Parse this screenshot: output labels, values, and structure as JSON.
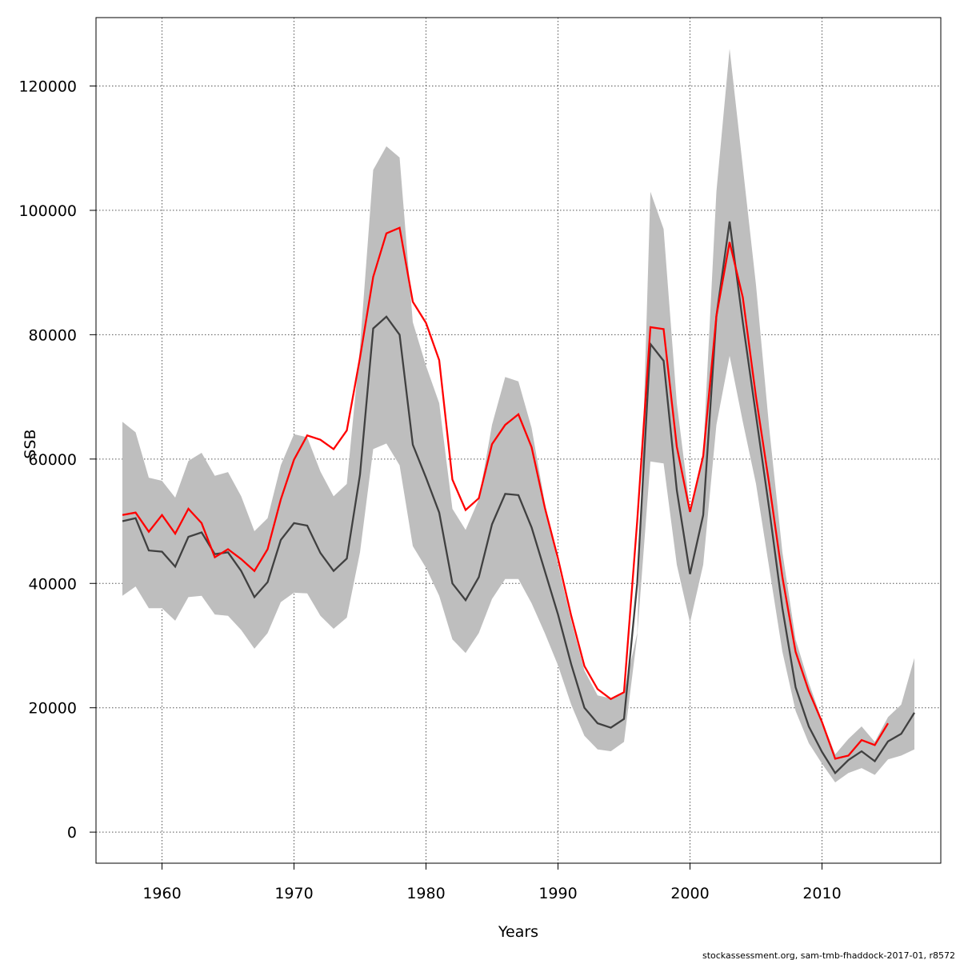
{
  "chart_data": {
    "type": "line",
    "title": "",
    "xlabel": "Years",
    "ylabel": "SSB",
    "xlim": [
      1955,
      2019
    ],
    "ylim": [
      -5000,
      131000
    ],
    "xticks": [
      1960,
      1970,
      1980,
      1990,
      2000,
      2010
    ],
    "yticks": [
      0,
      20000,
      40000,
      60000,
      80000,
      100000,
      120000
    ],
    "xtick_labels": [
      "1960",
      "1970",
      "1980",
      "1990",
      "2000",
      "2010"
    ],
    "ytick_labels": [
      "0",
      "20000",
      "40000",
      "60000",
      "80000",
      "100000",
      "120000"
    ],
    "grid": true,
    "colors": {
      "band": "#bebebe",
      "estimate": "#404040",
      "comparison": "#ff0000"
    },
    "x": [
      1957,
      1958,
      1959,
      1960,
      1961,
      1962,
      1963,
      1964,
      1965,
      1966,
      1967,
      1968,
      1969,
      1970,
      1971,
      1972,
      1973,
      1974,
      1975,
      1976,
      1977,
      1978,
      1979,
      1980,
      1981,
      1982,
      1983,
      1984,
      1985,
      1986,
      1987,
      1988,
      1989,
      1990,
      1991,
      1992,
      1993,
      1994,
      1995,
      1996,
      1997,
      1998,
      1999,
      2000,
      2001,
      2002,
      2003,
      2004,
      2005,
      2006,
      2007,
      2008,
      2009,
      2010,
      2011,
      2012,
      2013,
      2014,
      2015,
      2016,
      2017
    ],
    "band_upper": [
      66000,
      64300,
      57000,
      56500,
      53800,
      59700,
      61000,
      57300,
      57900,
      54000,
      48400,
      50500,
      59000,
      64000,
      63500,
      58000,
      54000,
      56000,
      78000,
      106500,
      110300,
      108500,
      82000,
      75000,
      69000,
      52000,
      48600,
      53500,
      65500,
      73200,
      72500,
      65000,
      53000,
      43000,
      34000,
      26000,
      22000,
      21500,
      22500,
      32000,
      103000,
      97000,
      69000,
      52000,
      61000,
      103000,
      126000,
      107000,
      88000,
      65000,
      45000,
      31000,
      24000,
      18000,
      12500,
      15000,
      17000,
      14500,
      18500,
      20500,
      28000
    ],
    "band_lower": [
      38000,
      39500,
      36000,
      36000,
      34000,
      37800,
      38000,
      35000,
      34800,
      32500,
      29500,
      32000,
      37000,
      38500,
      38400,
      34800,
      32700,
      34500,
      45000,
      61600,
      62500,
      59000,
      46000,
      42500,
      38000,
      31000,
      28800,
      32000,
      37500,
      40700,
      40700,
      36800,
      32000,
      26800,
      20500,
      15500,
      13300,
      13000,
      14500,
      31500,
      59600,
      59300,
      43000,
      33700,
      43000,
      65500,
      76600,
      66000,
      56000,
      42500,
      29000,
      19500,
      14300,
      11000,
      8000,
      9500,
      10300,
      9200,
      11700,
      12300,
      13300
    ],
    "series": [
      {
        "values": [
          50000,
          50500,
          45300,
          45100,
          42700,
          47500,
          48200,
          44700,
          45000,
          42000,
          37800,
          40200,
          47000,
          49700,
          49300,
          44900,
          42000,
          44000,
          57500,
          81000,
          82900,
          80000,
          62300,
          57000,
          51400,
          40000,
          37300,
          41000,
          49500,
          54400,
          54200,
          49000,
          42000,
          35000,
          27000,
          20000,
          17500,
          16800,
          18200,
          40000,
          78500,
          75800,
          55000,
          41500,
          51000,
          83000,
          98200,
          82000,
          67000,
          52000,
          36000,
          23300,
          17000,
          12900,
          9500,
          11600,
          13000,
          11400,
          14600,
          15800,
          19200
        ]
      },
      {
        "values": [
          51000,
          51400,
          48300,
          51000,
          48000,
          52000,
          49700,
          44200,
          45500,
          43900,
          42000,
          45500,
          53500,
          59900,
          63800,
          63100,
          61600,
          64600,
          76300,
          89300,
          96300,
          97200,
          85300,
          81900,
          75900,
          56700,
          51800,
          53700,
          62400,
          65500,
          67200,
          61900,
          52200,
          44000,
          34800,
          26700,
          23000,
          21400,
          22500,
          50000,
          81200,
          80900,
          62000,
          51500,
          60500,
          83000,
          94900,
          86000,
          70000,
          56000,
          41000,
          29000,
          22700,
          17700,
          11800,
          12300,
          14800,
          14000,
          17500,
          null,
          null
        ]
      }
    ],
    "footer": "stockassessment.org, sam-tmb-fhaddock-2017-01, r8572"
  }
}
